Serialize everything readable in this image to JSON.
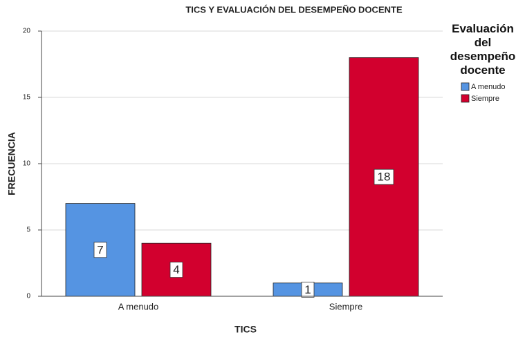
{
  "chart_data": {
    "type": "bar",
    "title": "TICS Y EVALUACIÓN DEL DESEMPEÑO DOCENTE",
    "x_label": "TICS",
    "y_label": "FRECUENCIA",
    "legend_title": "Evaluación del desempeño docente",
    "categories": [
      "A menudo",
      "Siempre"
    ],
    "series": [
      {
        "name": "A menudo",
        "color": "#5594e2",
        "values": [
          7,
          1
        ]
      },
      {
        "name": "Siempre",
        "color": "#d2002e",
        "values": [
          4,
          18
        ]
      }
    ],
    "ylim": [
      0,
      20
    ],
    "yticks": [
      0,
      5,
      10,
      15,
      20
    ],
    "grid": true
  }
}
